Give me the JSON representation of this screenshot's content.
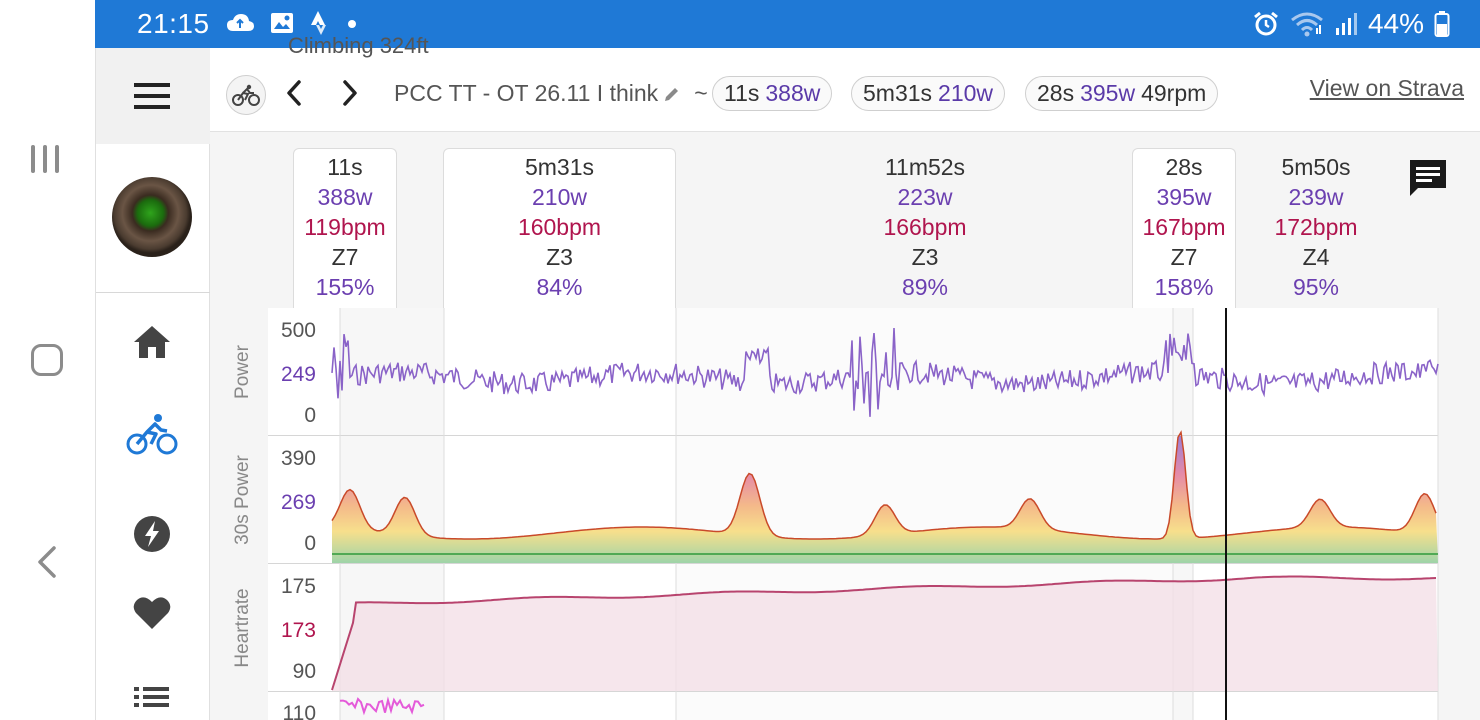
{
  "status_bar": {
    "time": "21:15",
    "left_icons": [
      "cloud-icon",
      "image-icon",
      "strava-icon",
      "dot-icon"
    ],
    "right_icons": [
      "alarm-icon",
      "wifi-icon",
      "signal-icon",
      "battery-icon"
    ],
    "battery_percent": "44%",
    "background_color": "#1f79d6"
  },
  "system_nav": {
    "buttons": [
      "recents-button",
      "home-button",
      "back-button"
    ]
  },
  "sidebar": {
    "menu_icon": "hamburger-menu-icon",
    "avatar": "profile-avatar",
    "items": [
      {
        "icon": "home-icon",
        "active": false
      },
      {
        "icon": "bike-icon",
        "active": true
      },
      {
        "icon": "lightning-icon",
        "active": false
      },
      {
        "icon": "heart-icon",
        "active": false
      },
      {
        "icon": "list-icon",
        "active": false
      }
    ],
    "active_color": "#1f79d6"
  },
  "toolbar": {
    "peek_text": "Climbing 324ft",
    "activity_title": "PCC TT - OT 26.11 I think",
    "tilde": "~",
    "chips": [
      {
        "time": "11s",
        "watts": "388w",
        "rpm": ""
      },
      {
        "time": "5m31s",
        "watts": "210w",
        "rpm": ""
      },
      {
        "time": "28s",
        "watts": "395w",
        "rpm": "49rpm"
      }
    ],
    "strava_link": "View on Strava"
  },
  "intervals": [
    {
      "time": "11s",
      "watts": "388w",
      "hr": "119bpm",
      "zone": "Z7",
      "percent": "155%",
      "card": true
    },
    {
      "time": "5m31s",
      "watts": "210w",
      "hr": "160bpm",
      "zone": "Z3",
      "percent": "84%",
      "card": true
    },
    {
      "time": "11m52s",
      "watts": "223w",
      "hr": "166bpm",
      "zone": "Z3",
      "percent": "89%",
      "card": false
    },
    {
      "time": "28s",
      "watts": "395w",
      "hr": "167bpm",
      "zone": "Z7",
      "percent": "158%",
      "card": true
    },
    {
      "time": "5m50s",
      "watts": "239w",
      "hr": "172bpm",
      "zone": "Z4",
      "percent": "95%",
      "card": false
    }
  ],
  "panels": [
    {
      "label": "Power",
      "ticks": [
        "500",
        "249",
        "0"
      ]
    },
    {
      "label": "30s Power",
      "ticks": [
        "390",
        "269",
        "0"
      ]
    },
    {
      "label": "Heartrate",
      "ticks": [
        "175",
        "173",
        "90"
      ]
    },
    {
      "label": "",
      "ticks": [
        "110"
      ]
    }
  ],
  "colors": {
    "power": "#8a63c8",
    "heartrate": "#b8446e",
    "accent_purple": "#6b3fb0",
    "accent_hr": "#b0154e"
  }
}
